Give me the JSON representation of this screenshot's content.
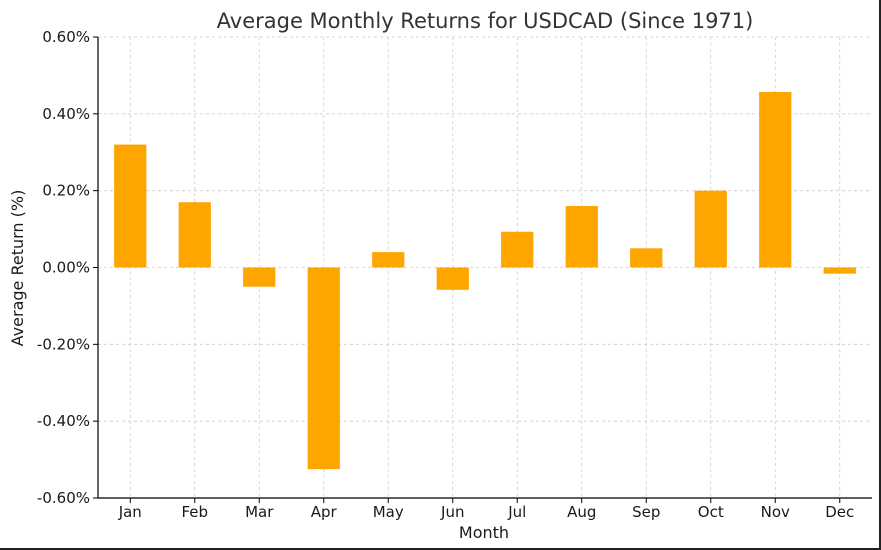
{
  "chart_data": {
    "type": "bar",
    "title": "Average Monthly Returns for USDCAD (Since 1971)",
    "xlabel": "Month",
    "ylabel": "Average Return (%)",
    "categories": [
      "Jan",
      "Feb",
      "Mar",
      "Apr",
      "May",
      "Jun",
      "Jul",
      "Aug",
      "Sep",
      "Oct",
      "Nov",
      "Dec"
    ],
    "values": [
      0.32,
      0.17,
      -0.05,
      -0.525,
      0.04,
      -0.058,
      0.093,
      0.16,
      0.05,
      0.2,
      0.457,
      -0.016
    ],
    "ylim": [
      -0.6,
      0.6
    ],
    "yticks": [
      -0.6,
      -0.4,
      -0.2,
      0.0,
      0.2,
      0.4,
      0.6
    ],
    "ytick_labels": [
      "-0.60%",
      "-0.40%",
      "-0.20%",
      "0.00%",
      "0.20%",
      "0.40%",
      "0.60%"
    ],
    "grid": true,
    "bar_color": "#ffa500",
    "grid_color": "#cccccc",
    "axis_color": "#000000"
  }
}
